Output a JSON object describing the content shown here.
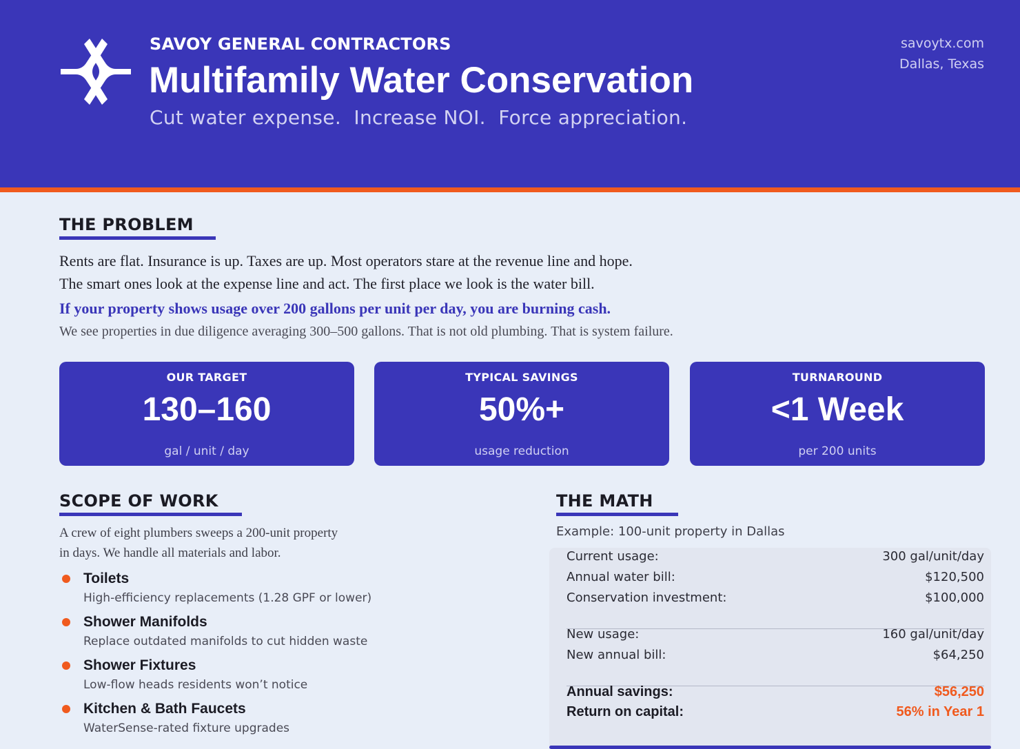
{
  "header": {
    "company": "SAVOY GENERAL CONTRACTORS",
    "title": "Multifamily Water Conservation",
    "tagline": "Cut water expense.  Increase NOI.  Force appreciation.",
    "website": "savoytx.com",
    "location": "Dallas, Texas",
    "logo_icon": "savoy-star-logo",
    "colors": {
      "brand": "#3a36b8",
      "accent": "#f05a1e"
    }
  },
  "problem": {
    "heading": "THE PROBLEM",
    "line1": "Rents are flat. Insurance is up. Taxes are up. Most operators stare at the revenue line and hope.",
    "line2": "The smart ones look at the expense line and act. The first place we look is the water bill.",
    "callout": "If your property shows usage over 200 gallons per unit per day, you are burning cash.",
    "sub": "We see properties in due diligence averaging 300–500 gallons. That is not old plumbing. That is system failure."
  },
  "stats": [
    {
      "label": "OUR TARGET",
      "value": "130–160",
      "unit": "gal / unit / day"
    },
    {
      "label": "TYPICAL SAVINGS",
      "value": "50%+",
      "unit": "usage reduction"
    },
    {
      "label": "TURNAROUND",
      "value": "<1 Week",
      "unit": "per 200 units"
    }
  ],
  "scope": {
    "heading": "SCOPE OF WORK",
    "intro_line1": "A crew of eight plumbers sweeps a 200-unit property",
    "intro_line2": "in days. We handle all materials and labor.",
    "items": [
      {
        "name": "Toilets",
        "desc": "High-efficiency replacements (1.28 GPF or lower)"
      },
      {
        "name": "Shower Manifolds",
        "desc": "Replace outdated manifolds to cut hidden waste"
      },
      {
        "name": "Shower Fixtures",
        "desc": "Low-flow heads residents won’t notice"
      },
      {
        "name": "Kitchen & Bath Faucets",
        "desc": "WaterSense-rated fixture upgrades"
      }
    ]
  },
  "math": {
    "heading": "THE MATH",
    "caption": "Example: 100-unit property in Dallas",
    "rows": [
      {
        "label": "Current usage:",
        "value": "300 gal/unit/day"
      },
      {
        "label": "Annual water bill:",
        "value": "$120,500"
      },
      {
        "label": "Conservation investment:",
        "value": "$100,000"
      },
      {
        "label": "New usage:",
        "value": "160 gal/unit/day"
      },
      {
        "label": "New annual bill:",
        "value": "$64,250"
      },
      {
        "label": "Annual savings:",
        "value": "$56,250"
      },
      {
        "label": "Return on capital:",
        "value": "56% in Year 1"
      }
    ]
  }
}
